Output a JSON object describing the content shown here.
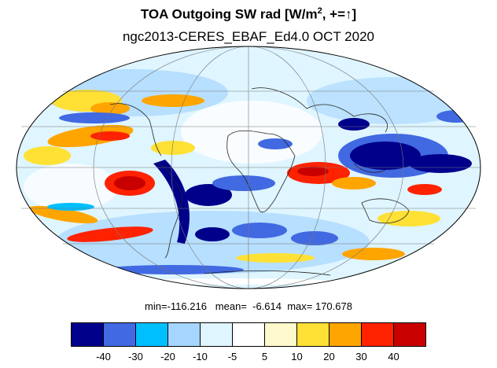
{
  "title": {
    "main": "TOA Outgoing SW rad [W/m",
    "sup": "2",
    "tail": ", +=↑]"
  },
  "subtitle": "ngc2013-CERES_EBAF_Ed4.0 OCT 2020",
  "stats": {
    "text": "min=-116.216   mean=  -6.614  max= 170.678",
    "min": -116.216,
    "mean": -6.614,
    "max": 170.678
  },
  "colorbar": {
    "colors": [
      "#00008b",
      "#4169e1",
      "#00bfff",
      "#a5d6ff",
      "#dff5ff",
      "#ffffff",
      "#fffacd",
      "#ffe135",
      "#ffa500",
      "#ff2200",
      "#c80000"
    ],
    "labels": [
      "-40",
      "-30",
      "-20",
      "-10",
      "-5",
      "5",
      "10",
      "20",
      "30",
      "40"
    ]
  },
  "map": {
    "projection": "mollweide",
    "grid": true
  }
}
